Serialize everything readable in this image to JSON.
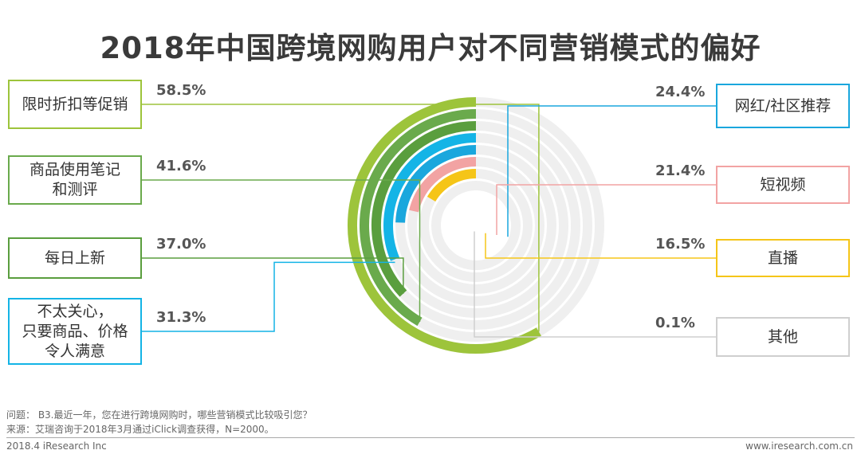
{
  "title": "2018年中国跨境网购用户对不同营销模式的偏好",
  "chart_data": {
    "type": "radial-bar",
    "title": "2018年中国跨境网购用户对不同营销模式的偏好",
    "categories": [
      "限时折扣等促销",
      "商品使用笔记和测评",
      "每日上新",
      "不太关心，只要商品、价格令人满意",
      "网红/社区推荐",
      "短视频",
      "直播",
      "其他"
    ],
    "series": [
      {
        "values": [
          58.5,
          41.6,
          37.0,
          31.3,
          24.4,
          21.4,
          16.5,
          0.1
        ]
      }
    ],
    "value_labels": [
      "58.5%",
      "41.6%",
      "37.0%",
      "31.3%",
      "24.4%",
      "21.4%",
      "16.5%",
      "0.1%"
    ],
    "ylim": [
      0,
      100
    ],
    "colors": [
      "#9dc43b",
      "#6aaa4c",
      "#5a9e3e",
      "#14b4e6",
      "#1aa7dd",
      "#f2a3a3",
      "#f5c518",
      "#cfcfcf"
    ],
    "legend": "left-right callouts"
  },
  "left_labels": [
    {
      "text": "限时折扣等促销",
      "pct": "58.5%",
      "color": "#9dc43b"
    },
    {
      "text": "商品使用笔记\n和测评",
      "pct": "41.6%",
      "color": "#6aaa4c"
    },
    {
      "text": "每日上新",
      "pct": "37.0%",
      "color": "#5a9e3e"
    },
    {
      "text": "不太关心，\n只要商品、价格\n令人满意",
      "pct": "31.3%",
      "color": "#14b4e6"
    }
  ],
  "right_labels": [
    {
      "text": "网红/社区推荐",
      "pct": "24.4%",
      "color": "#1aa7dd"
    },
    {
      "text": "短视频",
      "pct": "21.4%",
      "color": "#f2a3a3"
    },
    {
      "text": "直播",
      "pct": "16.5%",
      "color": "#f5c518"
    },
    {
      "text": "其他",
      "pct": "0.1%",
      "color": "#cfcfcf"
    }
  ],
  "footer": {
    "question": "问题： B3.最近一年，您在进行跨境网购时，哪些营销模式比较吸引您？",
    "source": "来源：艾瑞咨询于2018年3月通过iClick调查获得，N=2000。",
    "left": "2018.4 iResearch Inc",
    "right": "www.iresearch.com.cn"
  }
}
